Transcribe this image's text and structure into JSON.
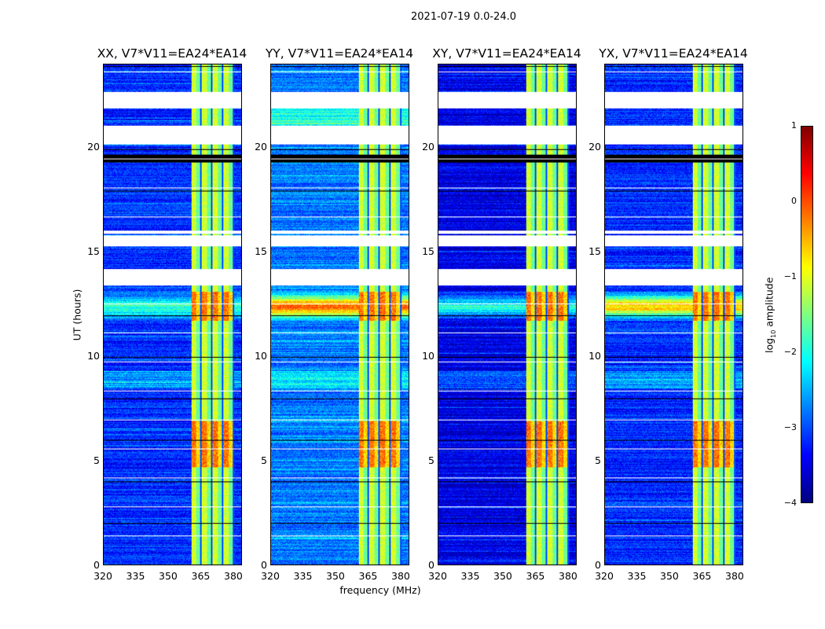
{
  "chart_data": {
    "type": "heatmap",
    "title": "2021-07-19 0.0-24.0",
    "xlabel": "frequency (MHz)",
    "ylabel": "UT (hours)",
    "xlim": [
      320,
      384
    ],
    "ylim": [
      0,
      24
    ],
    "xticks": [
      "320",
      "335",
      "350",
      "365",
      "380"
    ],
    "yticks": [
      "0",
      "5",
      "10",
      "15",
      "20"
    ],
    "panels": [
      {
        "title": "XX, V7*V11=EA24*EA14",
        "base": -3.2
      },
      {
        "title": "YY, V7*V11=EA24*EA14",
        "base": -2.8
      },
      {
        "title": "XY, V7*V11=EA24*EA14",
        "base": -3.5
      },
      {
        "title": "YX, V7*V11=EA24*EA14",
        "base": -3.2
      }
    ],
    "gaps_hours": [
      [
        21.9,
        22.7
      ],
      [
        20.2,
        21.1
      ],
      [
        15.9,
        16.05
      ],
      [
        15.3,
        15.8
      ],
      [
        13.4,
        14.2
      ]
    ],
    "flagged_black_hours": [
      [
        19.3,
        19.7
      ]
    ],
    "rfi_band_mhz": [
      360.5,
      380.5
    ],
    "rfi_band_level": -1.3,
    "strong_rfi_hours": [
      [
        11.7,
        13.1
      ],
      [
        4.7,
        6.9
      ]
    ],
    "colorbar": {
      "label": "log10 amplitude",
      "range": [
        -4,
        1
      ],
      "ticks": [
        "1",
        "0",
        "−1",
        "−2",
        "−3",
        "−4"
      ]
    }
  }
}
